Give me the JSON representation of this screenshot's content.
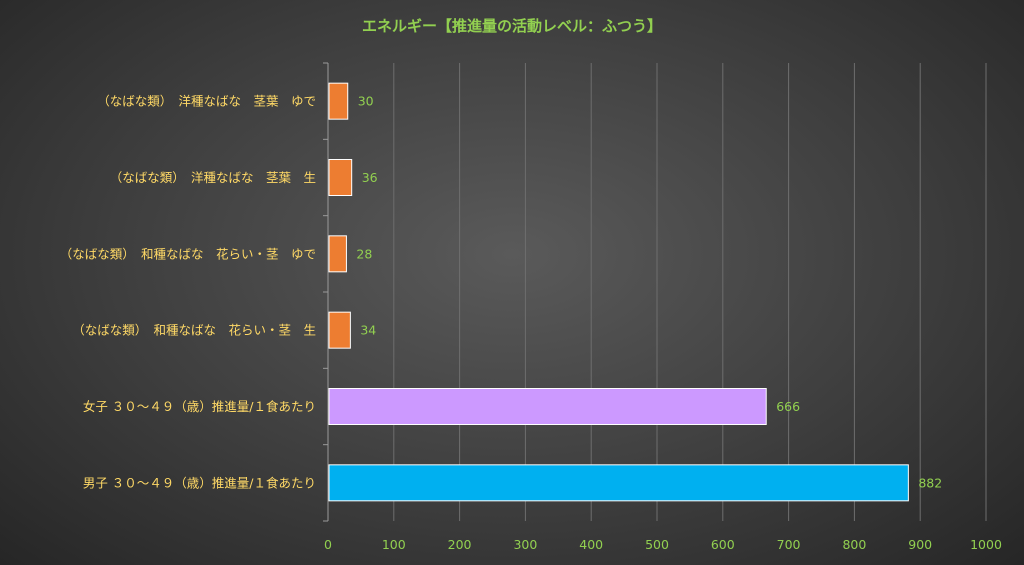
{
  "chart_data": {
    "type": "bar",
    "orientation": "horizontal",
    "title": "エネルギー【推進量の活動レベル：ふつう】",
    "categories": [
      "（なばな類）　洋種なばな　茎葉　ゆで",
      "（なばな類）　洋種なばな　茎葉　生",
      "（なばな類）　和種なばな　花らい・茎　ゆで",
      "（なばな類）　和種なばな　花らい・茎　生",
      "女子 ３０～４９（歳）推進量/１食あたり",
      "男子 ３０～４９（歳）推進量/１食あたり"
    ],
    "values": [
      30,
      36,
      28,
      34,
      666,
      882
    ],
    "bar_colors": [
      "#ed7d31",
      "#ed7d31",
      "#ed7d31",
      "#ed7d31",
      "#cc99ff",
      "#00b0f0"
    ],
    "xlim": [
      0,
      1000
    ],
    "x_ticks": [
      0,
      100,
      200,
      300,
      400,
      500,
      600,
      700,
      800,
      900,
      1000
    ],
    "grid": true,
    "legend": "none"
  }
}
